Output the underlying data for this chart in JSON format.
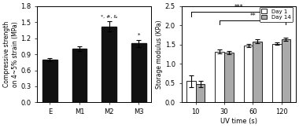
{
  "left": {
    "categories": [
      "E",
      "M1",
      "M2",
      "M3"
    ],
    "values": [
      0.8,
      1.0,
      1.42,
      1.1
    ],
    "errors": [
      0.03,
      0.04,
      0.1,
      0.07
    ],
    "bar_color": "#111111",
    "ylabel": "Compressive strength\non 4~5% strain (MPa)",
    "ylim": [
      0,
      1.8
    ],
    "yticks": [
      0.0,
      0.3,
      0.6,
      0.9,
      1.2,
      1.5,
      1.8
    ],
    "bar_width": 0.5
  },
  "right": {
    "categories": [
      "10",
      "30",
      "60",
      "120"
    ],
    "day1_values": [
      0.55,
      1.32,
      1.47,
      1.52
    ],
    "day1_errors": [
      0.15,
      0.05,
      0.04,
      0.03
    ],
    "day14_values": [
      0.48,
      1.3,
      1.58,
      1.63
    ],
    "day14_errors": [
      0.08,
      0.04,
      0.05,
      0.04
    ],
    "day1_color": "#ffffff",
    "day14_color": "#aaaaaa",
    "edge_color": "#222222",
    "ylabel": "Storage modulus (KPa)",
    "xlabel": "UV time (s)",
    "ylim": [
      0,
      2.5
    ],
    "yticks": [
      0.0,
      0.5,
      1.0,
      1.5,
      2.0,
      2.5
    ],
    "bar_width": 0.32,
    "legend_labels": [
      "Day 1",
      "Day 14"
    ]
  }
}
